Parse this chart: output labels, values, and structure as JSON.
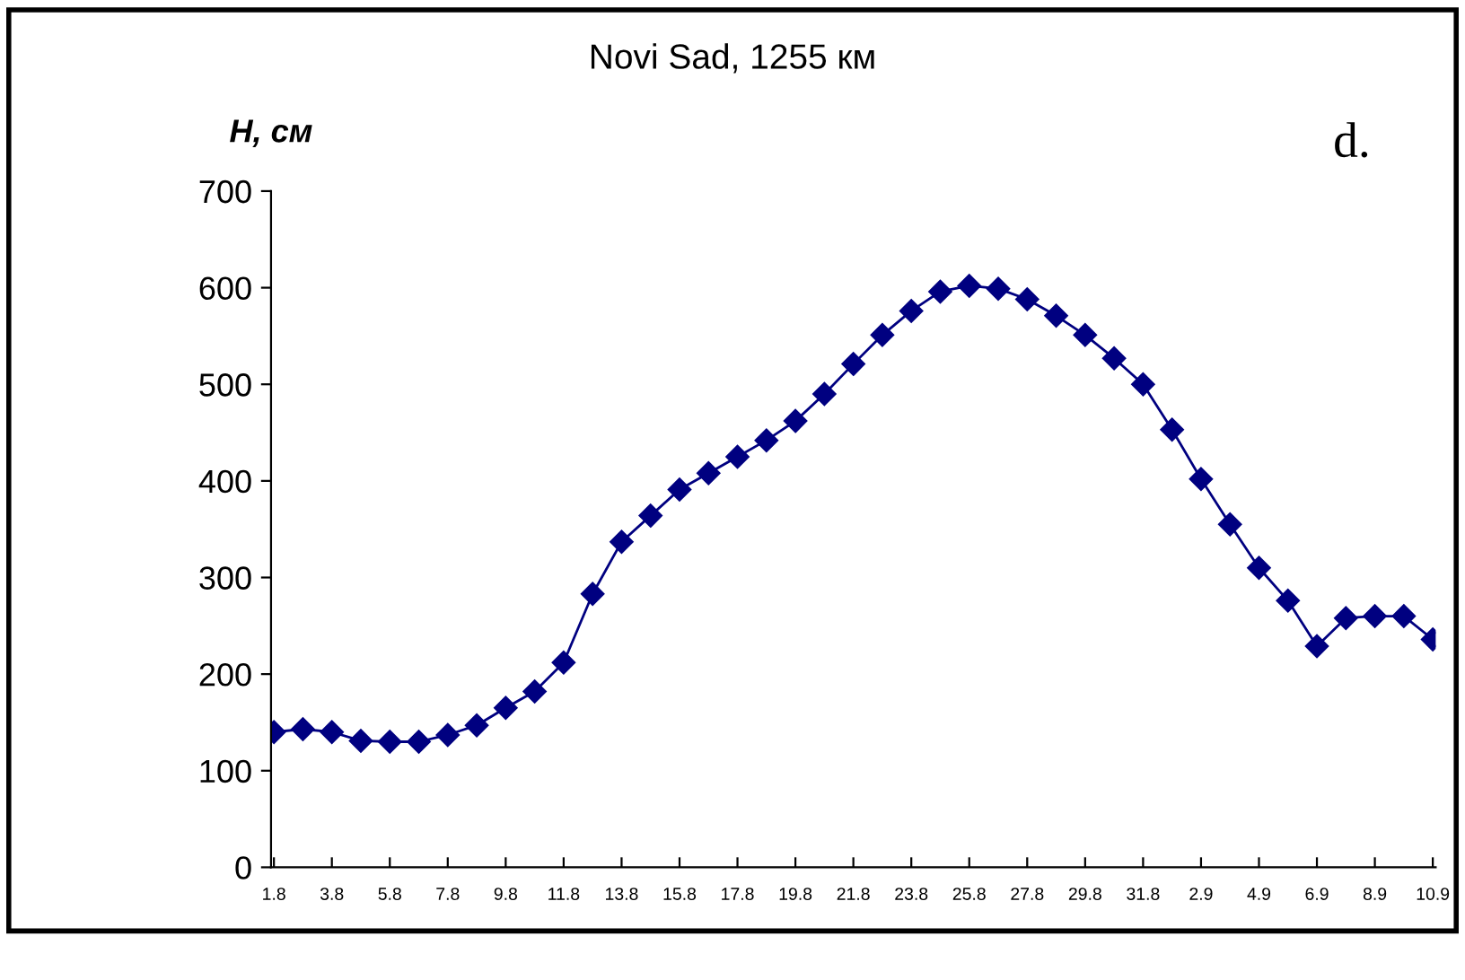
{
  "chart_data": {
    "type": "line",
    "title": "Novi Sad, 1255 км",
    "ylabel": "H, см",
    "annotations": [
      "d."
    ],
    "categories": [
      "1.8",
      null,
      "3.8",
      null,
      "5.8",
      null,
      "7.8",
      null,
      "9.8",
      null,
      "11.8",
      null,
      "13.8",
      null,
      "15.8",
      null,
      "17.8",
      null,
      "19.8",
      null,
      "21.8",
      null,
      "23.8",
      null,
      "25.8",
      null,
      "27.8",
      null,
      "29.8",
      null,
      "31.8",
      null,
      "2.9",
      null,
      "4.9",
      null,
      "6.9",
      null,
      "8.9",
      null,
      "10.9"
    ],
    "series": [
      {
        "color": "#000080",
        "values": [
          140,
          143,
          140,
          131,
          130,
          130,
          137,
          147,
          165,
          182,
          212,
          283,
          337,
          364,
          391,
          408,
          425,
          442,
          462,
          490,
          521,
          551,
          576,
          596,
          602,
          599,
          588,
          571,
          551,
          527,
          500,
          453,
          402,
          355,
          310,
          276,
          229,
          258,
          260,
          260,
          236
        ]
      }
    ],
    "ylim": [
      0,
      700
    ],
    "yticks": [
      0,
      100,
      200,
      300,
      400,
      500,
      600,
      700
    ],
    "grid": false,
    "legend": false,
    "marker": "diamond",
    "line_style": "solid"
  }
}
